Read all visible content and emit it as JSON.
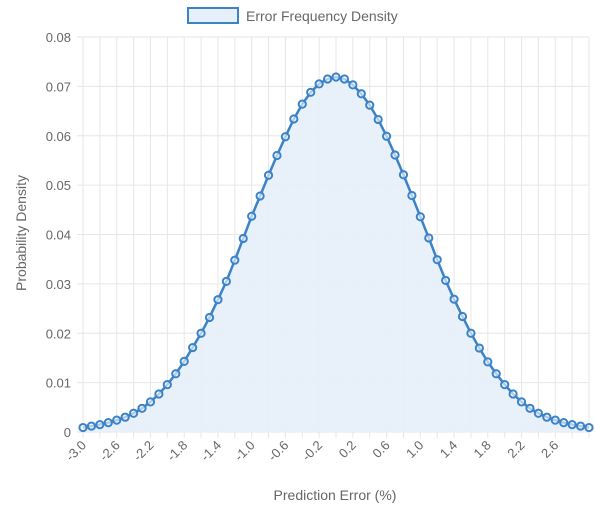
{
  "chart_data": {
    "type": "line",
    "title": "",
    "xlabel": "Prediction Error (%)",
    "ylabel": "Probability Density",
    "legend": {
      "position": "top-center",
      "entries": [
        "Error Frequency Density"
      ]
    },
    "grid": true,
    "colors": {
      "line": "#3b82c8",
      "fill": "#e6f0fa",
      "grid": "#e6e6e6",
      "text": "#666666"
    },
    "xlim": [
      -3.0,
      3.0
    ],
    "ylim": [
      0,
      0.08
    ],
    "x_tick_labels": [
      "-3.0",
      "-2.6",
      "-2.2",
      "-1.8",
      "-1.4",
      "-1.0",
      "-0.6",
      "-0.2",
      "0.2",
      "0.6",
      "1.0",
      "1.4",
      "1.8",
      "2.2",
      "2.6"
    ],
    "y_tick_labels": [
      "0",
      "0.01",
      "0.02",
      "0.03",
      "0.04",
      "0.05",
      "0.06",
      "0.07",
      "0.08"
    ],
    "series": [
      {
        "name": "Error Frequency Density",
        "x": [
          -3.0,
          -2.9,
          -2.8,
          -2.7,
          -2.6,
          -2.5,
          -2.4,
          -2.3,
          -2.2,
          -2.1,
          -2.0,
          -1.9,
          -1.8,
          -1.7,
          -1.6,
          -1.5,
          -1.4,
          -1.3,
          -1.2,
          -1.1,
          -1.0,
          -0.9,
          -0.8,
          -0.7,
          -0.6,
          -0.5,
          -0.4,
          -0.3,
          -0.2,
          -0.1,
          0.0,
          0.1,
          0.2,
          0.3,
          0.4,
          0.5,
          0.6,
          0.7,
          0.8,
          0.9,
          1.0,
          1.1,
          1.2,
          1.3,
          1.4,
          1.5,
          1.6,
          1.7,
          1.8,
          1.9,
          2.0,
          2.1,
          2.2,
          2.3,
          2.4,
          2.5,
          2.6,
          2.7,
          2.8,
          2.9,
          3.0
        ],
        "values": [
          0.0009,
          0.0012,
          0.0015,
          0.0019,
          0.0024,
          0.003,
          0.0038,
          0.0048,
          0.0061,
          0.0077,
          0.0096,
          0.0118,
          0.0143,
          0.0171,
          0.02,
          0.0232,
          0.0268,
          0.0305,
          0.0348,
          0.0392,
          0.0437,
          0.0478,
          0.052,
          0.056,
          0.0598,
          0.0634,
          0.0664,
          0.0688,
          0.0705,
          0.0715,
          0.0719,
          0.0715,
          0.0703,
          0.0685,
          0.0662,
          0.0633,
          0.0599,
          0.0561,
          0.0521,
          0.0479,
          0.0436,
          0.0393,
          0.0349,
          0.0307,
          0.0269,
          0.0234,
          0.02,
          0.017,
          0.0142,
          0.0118,
          0.0096,
          0.0077,
          0.0061,
          0.0048,
          0.0038,
          0.003,
          0.0024,
          0.0019,
          0.0015,
          0.0012,
          0.0009
        ]
      }
    ]
  }
}
